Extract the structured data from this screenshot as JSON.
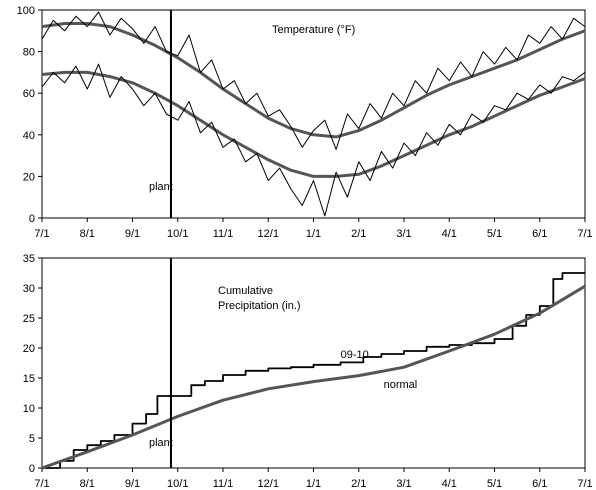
{
  "chart_data": [
    {
      "type": "line",
      "annotation_title": "Temperature (°F)",
      "x_tick_labels": [
        "7/1",
        "8/1",
        "9/1",
        "10/1",
        "11/1",
        "12/1",
        "1/1",
        "2/1",
        "3/1",
        "4/1",
        "5/1",
        "6/1",
        "7/1"
      ],
      "y_ticks": [
        0,
        20,
        40,
        60,
        80,
        100
      ],
      "xlim": [
        0,
        12
      ],
      "ylim": [
        0,
        100
      ],
      "grid": false,
      "plant_marker": {
        "x": 2.85,
        "label": "plant"
      },
      "series": [
        {
          "role": "normal-high",
          "x": [
            0,
            0.5,
            1,
            1.5,
            2,
            2.5,
            3,
            3.5,
            4,
            4.5,
            5,
            5.5,
            6,
            6.5,
            7,
            7.5,
            8,
            8.5,
            9,
            9.5,
            10,
            10.5,
            11,
            11.5,
            12
          ],
          "values": [
            92,
            93.5,
            93.5,
            92,
            88,
            83,
            77,
            70,
            62,
            55,
            48,
            43,
            40,
            39,
            42,
            47,
            53,
            59,
            64,
            68,
            72,
            76,
            81,
            86,
            90
          ]
        },
        {
          "role": "normal-low",
          "x": [
            0,
            0.5,
            1,
            1.5,
            2,
            2.5,
            3,
            3.5,
            4,
            4.5,
            5,
            5.5,
            6,
            6.5,
            7,
            7.5,
            8,
            8.5,
            9,
            9.5,
            10,
            10.5,
            11,
            11.5,
            12
          ],
          "values": [
            69,
            70,
            70,
            68,
            65,
            60,
            54,
            47,
            40,
            34,
            28,
            23,
            20,
            20,
            21,
            25,
            30,
            35,
            40,
            44,
            49,
            54,
            59,
            63,
            67
          ]
        },
        {
          "role": "daily-high",
          "x": [
            0,
            0.25,
            0.5,
            0.75,
            1,
            1.25,
            1.5,
            1.75,
            2,
            2.25,
            2.5,
            2.75,
            3,
            3.25,
            3.5,
            3.75,
            4,
            4.25,
            4.5,
            4.75,
            5,
            5.25,
            5.5,
            5.75,
            6,
            6.25,
            6.5,
            6.75,
            7,
            7.25,
            7.5,
            7.75,
            8,
            8.25,
            8.5,
            8.75,
            9,
            9.25,
            9.5,
            9.75,
            10,
            10.25,
            10.5,
            10.75,
            11,
            11.25,
            11.5,
            11.75,
            12
          ],
          "values": [
            86,
            95,
            90,
            97,
            92,
            99,
            88,
            96,
            91,
            84,
            92,
            80,
            78,
            88,
            70,
            76,
            62,
            66,
            55,
            60,
            49,
            52,
            44,
            34,
            42,
            47,
            33,
            50,
            43,
            55,
            48,
            60,
            54,
            66,
            60,
            72,
            66,
            75,
            68,
            80,
            74,
            82,
            76,
            88,
            84,
            92,
            86,
            96,
            92
          ]
        },
        {
          "role": "daily-low",
          "x": [
            0,
            0.25,
            0.5,
            0.75,
            1,
            1.25,
            1.5,
            1.75,
            2,
            2.25,
            2.5,
            2.75,
            3,
            3.25,
            3.5,
            3.75,
            4,
            4.25,
            4.5,
            4.75,
            5,
            5.25,
            5.5,
            5.75,
            6,
            6.25,
            6.5,
            6.75,
            7,
            7.25,
            7.5,
            7.75,
            8,
            8.25,
            8.5,
            8.75,
            9,
            9.25,
            9.5,
            9.75,
            10,
            10.25,
            10.5,
            10.75,
            11,
            11.25,
            11.5,
            11.75,
            12
          ],
          "values": [
            63,
            70,
            65,
            73,
            62,
            74,
            58,
            68,
            62,
            54,
            60,
            50,
            47,
            56,
            41,
            46,
            34,
            38,
            27,
            31,
            18,
            24,
            14,
            6,
            18,
            1,
            22,
            10,
            27,
            18,
            32,
            24,
            36,
            30,
            41,
            35,
            45,
            40,
            50,
            46,
            54,
            52,
            60,
            57,
            64,
            60,
            68,
            66,
            70
          ]
        }
      ]
    },
    {
      "type": "line",
      "annotation_title": "Cumulative Precipitation (in.)",
      "x_tick_labels": [
        "7/1",
        "8/1",
        "9/1",
        "10/1",
        "11/1",
        "12/1",
        "1/1",
        "2/1",
        "3/1",
        "4/1",
        "5/1",
        "6/1",
        "7/1"
      ],
      "y_ticks": [
        0,
        5,
        10,
        15,
        20,
        25,
        30,
        35
      ],
      "xlim": [
        0,
        12
      ],
      "ylim": [
        0,
        35
      ],
      "grid": false,
      "plant_marker": {
        "x": 2.85,
        "label": "plant"
      },
      "series": [
        {
          "name": "09-10",
          "label_at": {
            "x": 6.6,
            "y": 18.3
          },
          "x": [
            0,
            0.4,
            0.4,
            0.7,
            0.7,
            1.0,
            1.0,
            1.3,
            1.3,
            1.6,
            1.6,
            2.0,
            2.0,
            2.3,
            2.3,
            2.55,
            2.55,
            2.8,
            2.8,
            3.3,
            3.3,
            3.6,
            3.6,
            4.0,
            4.0,
            4.5,
            4.5,
            5.0,
            5.0,
            5.5,
            5.5,
            6.0,
            6.0,
            6.6,
            6.6,
            7.1,
            7.1,
            7.5,
            7.5,
            8.0,
            8.0,
            8.5,
            8.5,
            9.0,
            9.0,
            9.5,
            9.5,
            10.0,
            10.0,
            10.4,
            10.4,
            10.7,
            10.7,
            11.0,
            11.0,
            11.3,
            11.3,
            11.5,
            11.5,
            12.0
          ],
          "values": [
            0,
            0,
            1.2,
            1.2,
            3,
            3,
            3.8,
            3.8,
            4.5,
            4.5,
            5.5,
            5.5,
            7.4,
            7.4,
            9,
            9,
            12,
            12,
            12,
            12,
            13.8,
            13.8,
            14.5,
            14.5,
            15.5,
            15.5,
            16.2,
            16.2,
            16.6,
            16.6,
            16.8,
            16.8,
            17.2,
            17.2,
            17.6,
            17.6,
            18.5,
            18.5,
            19,
            19,
            19.5,
            19.5,
            20.2,
            20.2,
            20.5,
            20.5,
            20.8,
            20.8,
            21.5,
            21.5,
            23.7,
            23.7,
            25.5,
            25.5,
            27,
            27,
            31.5,
            31.5,
            32.5,
            32.5
          ]
        },
        {
          "name": "normal",
          "label_at": {
            "x": 7.55,
            "y": 13.3
          },
          "x": [
            0,
            1,
            2,
            3,
            4,
            5,
            6,
            7,
            8,
            9,
            10,
            11,
            12
          ],
          "values": [
            0,
            2.7,
            5.5,
            8.6,
            11.3,
            13.2,
            14.4,
            15.4,
            16.8,
            19.5,
            22.3,
            25.8,
            30.3
          ]
        }
      ]
    }
  ]
}
